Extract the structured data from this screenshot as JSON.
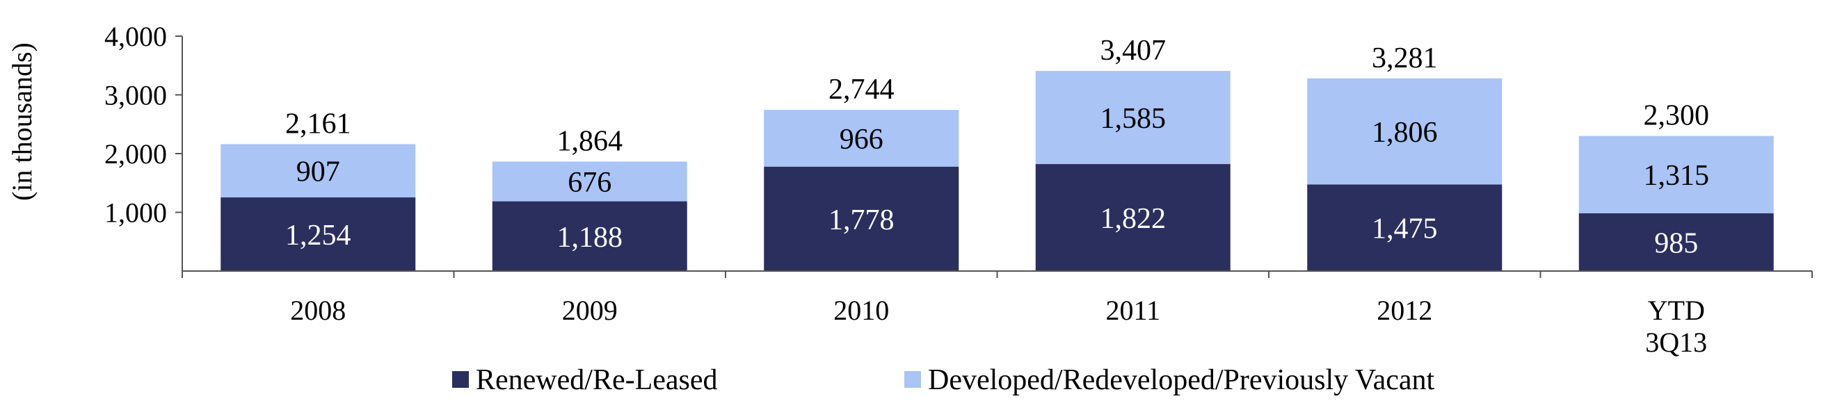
{
  "chart_data": {
    "type": "bar",
    "stacked": true,
    "categories": [
      "2008",
      "2009",
      "2010",
      "2011",
      "2012",
      "YTD 3Q13"
    ],
    "series": [
      {
        "name": "Renewed/Re-Leased",
        "values": [
          1254,
          1188,
          1778,
          1822,
          1475,
          985
        ],
        "color": "#2b2f5e"
      },
      {
        "name": "Developed/Redeveloped/Previously Vacant",
        "values": [
          907,
          676,
          966,
          1585,
          1806,
          1315
        ],
        "color": "#a9c4f5"
      }
    ],
    "totals": [
      2161,
      1864,
      2744,
      3407,
      3281,
      2300
    ],
    "ylabel": "(in thousands)",
    "xlabel": "",
    "ylim": [
      0,
      4000
    ],
    "yticks": [
      1000,
      2000,
      3000,
      4000
    ],
    "grid": false,
    "legend_position": "bottom"
  }
}
